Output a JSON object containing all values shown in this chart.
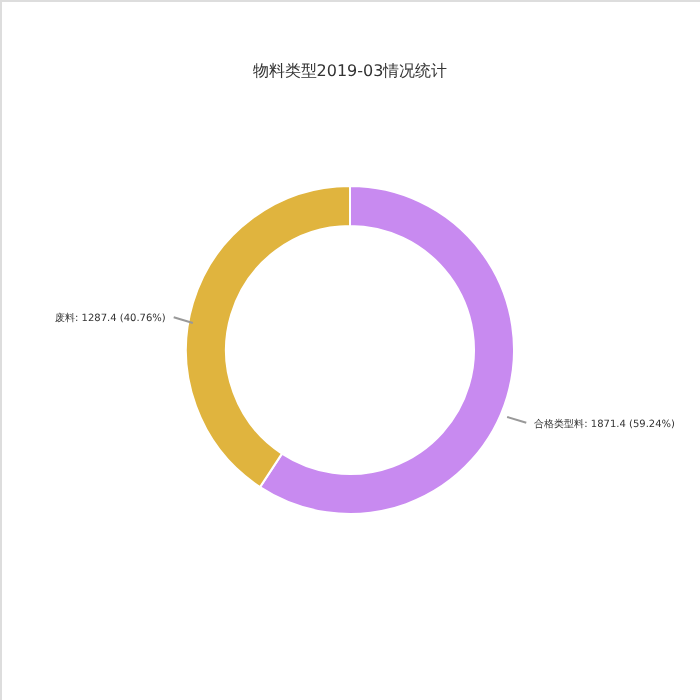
{
  "chart_data": {
    "type": "donut",
    "title": "物料类型2019-03情况统计",
    "categories": [
      "合格类型料",
      "废料"
    ],
    "values": [
      1871.4,
      1287.4
    ],
    "colors": [
      "#c88af0",
      "#e0b43e"
    ],
    "value_labels": [
      "1871.4 (59.24%)",
      "1287.4 (40.76%)"
    ],
    "legend": false
  }
}
